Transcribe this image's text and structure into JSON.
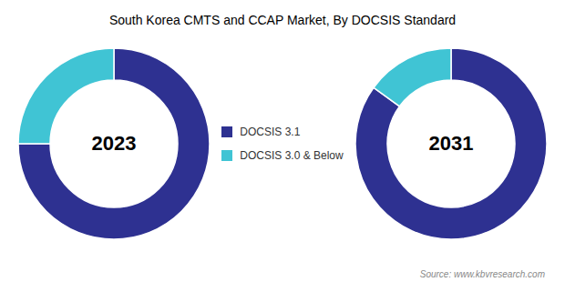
{
  "chart_data": {
    "type": "donut",
    "title": "South Korea CMTS and CCAP Market, By DOCSIS Standard",
    "categories": [
      "DOCSIS 3.1",
      "DOCSIS 3.0 & Below"
    ],
    "series": [
      {
        "name": "2023",
        "values": [
          75,
          25
        ]
      },
      {
        "name": "2031",
        "values": [
          85,
          15
        ]
      }
    ],
    "colors": [
      "#2e3191",
      "#40c4d4"
    ],
    "legend": "center",
    "annotations": [
      "Source: www.kbvresearch.com"
    ]
  }
}
